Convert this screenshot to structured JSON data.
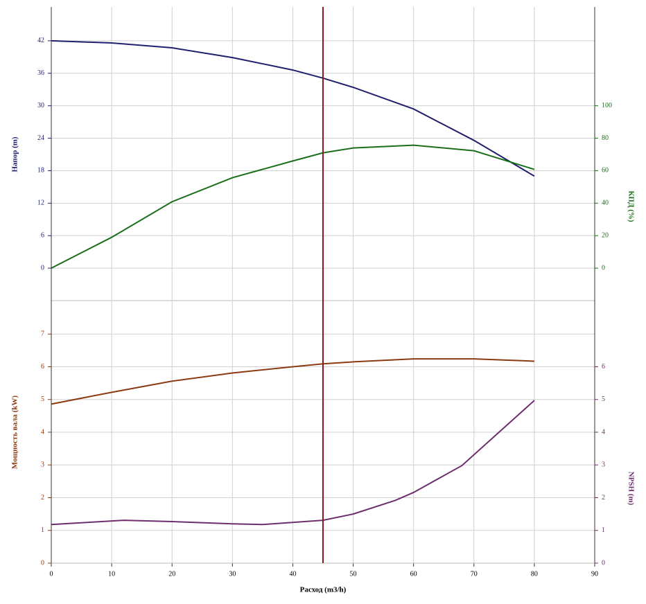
{
  "chart_data": [
    {
      "type": "line",
      "ylabel": "Напор (m)",
      "y2label": "КПД (%)",
      "grid": true,
      "xlim": [
        0,
        90
      ],
      "xticks": [
        0,
        10,
        20,
        30,
        40,
        50,
        60,
        70,
        80,
        90
      ],
      "ylim": [
        -6,
        48
      ],
      "yticks": [
        0,
        6,
        12,
        18,
        24,
        30,
        36,
        42
      ],
      "y2lim": [
        -20,
        160
      ],
      "y2ticks": [
        0,
        20,
        40,
        60,
        80,
        100
      ],
      "series": [
        {
          "color": "#1f1f6e",
          "x": [
            0,
            10,
            20,
            30,
            40,
            45,
            50,
            60,
            70,
            80
          ],
          "values": [
            42,
            41.6,
            40.7,
            38.9,
            36.6,
            35.1,
            33.4,
            29.4,
            23.6,
            17.0
          ]
        },
        {
          "color": "#1a6e1a",
          "axis": "y2",
          "x": [
            0,
            10,
            20,
            30,
            40,
            45,
            50,
            60,
            70,
            80
          ],
          "values": [
            0,
            19,
            40.9,
            55.7,
            66,
            71,
            74,
            75.7,
            72.3,
            60.8
          ]
        }
      ]
    },
    {
      "type": "line",
      "xlabel": "Расход (m3/h)",
      "ylabel": "Мощность вала (kW)",
      "y2label": "NPSH (m)",
      "grid": true,
      "xlim": [
        0,
        90
      ],
      "xticks": [
        0,
        10,
        20,
        30,
        40,
        50,
        60,
        70,
        80,
        90
      ],
      "ylim": [
        0,
        8
      ],
      "yticks": [
        0,
        1,
        2,
        3,
        4,
        5,
        6,
        7
      ],
      "y2lim": [
        0,
        8
      ],
      "y2ticks": [
        0,
        1,
        2,
        3,
        4,
        5,
        6
      ],
      "vline": {
        "x": 45,
        "color": "#8b1a1a"
      },
      "series": [
        {
          "color": "#8b3a10",
          "x": [
            0,
            10,
            20,
            30,
            40,
            45,
            50,
            60,
            70,
            80
          ],
          "values": [
            4.86,
            5.22,
            5.56,
            5.81,
            6.0,
            6.09,
            6.15,
            6.24,
            6.24,
            6.17
          ]
        },
        {
          "color": "#6e2e6e",
          "axis": "y2",
          "x": [
            0,
            12,
            20,
            30,
            35,
            45,
            50,
            57,
            60,
            68,
            80
          ],
          "values": [
            1.18,
            1.31,
            1.27,
            1.2,
            1.18,
            1.31,
            1.5,
            1.92,
            2.16,
            2.98,
            4.97
          ]
        }
      ]
    }
  ]
}
